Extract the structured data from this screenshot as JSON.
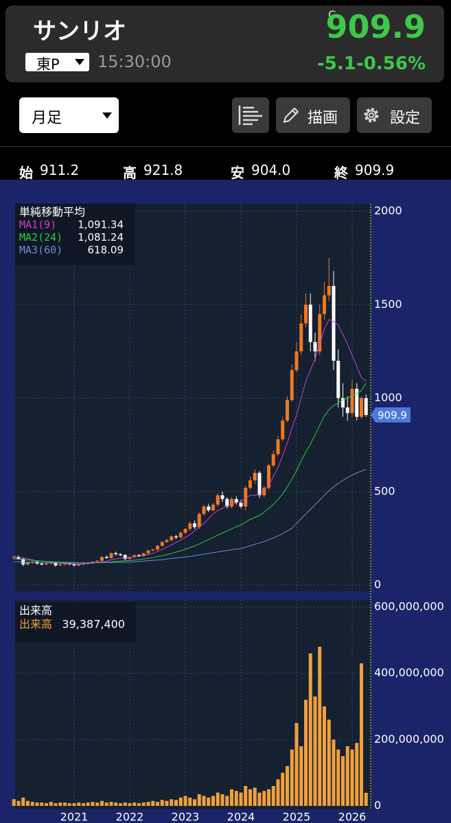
{
  "header": {
    "name": "サンリオ",
    "close_marker": "C",
    "price": "909.9",
    "market": "東P",
    "time": "15:30:00",
    "change": "-5.1",
    "change_pct": "-0.56%"
  },
  "toolbar": {
    "period": "月足",
    "draw": "描画",
    "settings": "設定"
  },
  "ohlc": [
    {
      "label": "始",
      "value": "911.2"
    },
    {
      "label": "高",
      "value": "921.8"
    },
    {
      "label": "安",
      "value": "904.0"
    },
    {
      "label": "終",
      "value": "909.9"
    }
  ],
  "chart_data": [
    {
      "type": "candlestick",
      "categories": [
        null,
        null,
        null,
        null,
        null,
        null,
        null,
        null,
        null,
        null,
        null,
        null,
        null,
        "2021",
        null,
        null,
        null,
        null,
        null,
        null,
        null,
        null,
        null,
        null,
        null,
        "2022",
        null,
        null,
        null,
        null,
        null,
        null,
        null,
        null,
        null,
        null,
        null,
        "2023",
        null,
        null,
        null,
        null,
        null,
        null,
        null,
        null,
        null,
        null,
        null,
        "2024",
        null,
        null,
        null,
        null,
        null,
        null,
        null,
        null,
        null,
        null,
        null,
        "2025",
        null,
        null,
        null,
        null,
        null,
        null,
        null,
        null,
        null,
        null,
        null,
        "2026",
        null,
        null,
        null
      ],
      "open": [
        145,
        150,
        140,
        110,
        120,
        125,
        115,
        110,
        115,
        120,
        105,
        110,
        115,
        110,
        105,
        110,
        115,
        120,
        125,
        130,
        150,
        145,
        170,
        165,
        160,
        140,
        150,
        160,
        155,
        170,
        185,
        190,
        210,
        230,
        240,
        260,
        255,
        280,
        300,
        330,
        310,
        380,
        420,
        400,
        430,
        480,
        460,
        420,
        460,
        440,
        420,
        520,
        560,
        600,
        480,
        520,
        640,
        700,
        780,
        880,
        990,
        1150,
        1250,
        1400,
        1500,
        1300,
        1250,
        1450,
        1550,
        1600,
        1200,
        1000,
        950,
        920,
        1050,
        900,
        1000
      ],
      "high": [
        155,
        158,
        145,
        125,
        128,
        130,
        120,
        120,
        125,
        125,
        112,
        118,
        120,
        115,
        113,
        118,
        123,
        127,
        132,
        155,
        158,
        175,
        178,
        170,
        165,
        152,
        162,
        165,
        172,
        188,
        195,
        215,
        235,
        248,
        265,
        268,
        285,
        305,
        340,
        345,
        390,
        430,
        435,
        440,
        490,
        500,
        470,
        470,
        475,
        455,
        530,
        580,
        620,
        610,
        530,
        650,
        720,
        800,
        900,
        1010,
        1180,
        1300,
        1450,
        1560,
        1560,
        1350,
        1500,
        1620,
        1750,
        1680,
        1260,
        1080,
        1010,
        1100,
        1080,
        1010,
        1020
      ],
      "low": [
        138,
        140,
        100,
        105,
        112,
        108,
        105,
        105,
        110,
        98,
        100,
        105,
        105,
        100,
        100,
        105,
        110,
        115,
        120,
        125,
        140,
        140,
        158,
        155,
        132,
        135,
        142,
        150,
        150,
        165,
        180,
        185,
        205,
        225,
        235,
        245,
        250,
        270,
        290,
        300,
        300,
        370,
        390,
        395,
        420,
        445,
        410,
        410,
        430,
        410,
        400,
        510,
        540,
        465,
        470,
        510,
        630,
        690,
        770,
        870,
        980,
        1140,
        1230,
        1380,
        1250,
        1200,
        1230,
        1420,
        1520,
        1150,
        950,
        900,
        880,
        900,
        880,
        890,
        900
      ],
      "close": [
        150,
        140,
        110,
        120,
        125,
        115,
        110,
        115,
        120,
        105,
        110,
        115,
        110,
        105,
        110,
        115,
        120,
        125,
        130,
        150,
        145,
        170,
        165,
        160,
        140,
        150,
        160,
        155,
        170,
        185,
        190,
        210,
        230,
        240,
        260,
        255,
        280,
        300,
        330,
        310,
        380,
        420,
        400,
        430,
        480,
        460,
        420,
        460,
        440,
        420,
        520,
        560,
        600,
        480,
        520,
        640,
        700,
        780,
        880,
        990,
        1150,
        1250,
        1400,
        1500,
        1300,
        1250,
        1450,
        1550,
        1600,
        1200,
        1000,
        950,
        920,
        1050,
        900,
        1000,
        909.9
      ],
      "up_color": "#f07820",
      "down_color": "#ffffff",
      "last_price": 909.9,
      "legend_title": "単純移動平均",
      "series": [
        {
          "name": "MA1(9)",
          "color": "#d23cd2",
          "latest": {
            "value": 1091.34,
            "label": "1,091.34"
          },
          "values": [
            155,
            150,
            145,
            140,
            135,
            130,
            128,
            125,
            123,
            118,
            116,
            115,
            113,
            112,
            112,
            113,
            115,
            117,
            120,
            124,
            128,
            135,
            140,
            144,
            145,
            148,
            152,
            154,
            158,
            163,
            170,
            180,
            190,
            203,
            215,
            228,
            240,
            255,
            270,
            290,
            310,
            330,
            355,
            380,
            400,
            410,
            425,
            435,
            440,
            450,
            465,
            480,
            480,
            485,
            505,
            535,
            580,
            630,
            690,
            760,
            840,
            910,
            1000,
            1090,
            1150,
            1210,
            1290,
            1370,
            1420,
            1410,
            1390,
            1340,
            1290,
            1230,
            1170,
            1110,
            1091.34
          ]
        },
        {
          "name": "MA2(24)",
          "color": "#2ecc40",
          "latest": {
            "value": 1081.24,
            "label": "1,081.24"
          },
          "values": [
            140,
            138,
            136,
            134,
            132,
            130,
            128,
            126,
            125,
            124,
            123,
            122,
            121,
            120,
            119,
            119,
            119,
            120,
            120,
            121,
            122,
            124,
            126,
            128,
            129,
            131,
            133,
            136,
            139,
            143,
            147,
            152,
            157,
            163,
            169,
            176,
            183,
            191,
            200,
            209,
            220,
            231,
            243,
            255,
            267,
            278,
            290,
            301,
            312,
            322,
            336,
            351,
            361,
            372,
            390,
            410,
            431,
            457,
            488,
            524,
            568,
            612,
            665,
            712,
            755,
            805,
            855,
            905,
            937,
            960,
            975,
            990,
            1000,
            1015,
            1025,
            1040,
            1081.24
          ]
        },
        {
          "name": "MA3(60)",
          "color": "#6a8fd8",
          "latest": {
            "value": 618.09,
            "label": "618.09"
          },
          "values": [
            125,
            124,
            123,
            122,
            121,
            120,
            120,
            119,
            119,
            118,
            118,
            118,
            118,
            118,
            118,
            118,
            118,
            119,
            119,
            120,
            120,
            121,
            121,
            122,
            122,
            122,
            124,
            126,
            128,
            130,
            132,
            134,
            136,
            139,
            142,
            145,
            148,
            150,
            153,
            157,
            161,
            165,
            169,
            173,
            177,
            181,
            185,
            189,
            192,
            195,
            202,
            210,
            218,
            225,
            233,
            242,
            252,
            263,
            275,
            289,
            304,
            330,
            355,
            380,
            405,
            430,
            455,
            480,
            505,
            525,
            545,
            560,
            575,
            588,
            600,
            610,
            618.09
          ]
        }
      ],
      "ylim": [
        0,
        2000
      ],
      "yticks": [
        0,
        500,
        1000,
        1500,
        2000
      ],
      "grid": true
    },
    {
      "type": "bar",
      "title": "出来高",
      "categories": [
        null,
        null,
        null,
        null,
        null,
        null,
        null,
        null,
        null,
        null,
        null,
        null,
        null,
        "2021",
        null,
        null,
        null,
        null,
        null,
        null,
        null,
        null,
        null,
        null,
        null,
        "2022",
        null,
        null,
        null,
        null,
        null,
        null,
        null,
        null,
        null,
        null,
        null,
        "2023",
        null,
        null,
        null,
        null,
        null,
        null,
        null,
        null,
        null,
        null,
        null,
        "2024",
        null,
        null,
        null,
        null,
        null,
        null,
        null,
        null,
        null,
        null,
        null,
        "2025",
        null,
        null,
        null,
        null,
        null,
        null,
        null,
        null,
        null,
        null,
        null,
        "2026",
        null,
        null,
        null
      ],
      "series": [
        {
          "name": "出来高",
          "color": "#f0a03c",
          "latest": {
            "value": 39387400,
            "label": "39,387,400"
          },
          "values": [
            20000000,
            15000000,
            25000000,
            15000000,
            12000000,
            10000000,
            10000000,
            8000000,
            12000000,
            8000000,
            10000000,
            10000000,
            8000000,
            8000000,
            10000000,
            8000000,
            10000000,
            12000000,
            10000000,
            15000000,
            10000000,
            12000000,
            10000000,
            8000000,
            10000000,
            8000000,
            10000000,
            8000000,
            10000000,
            12000000,
            15000000,
            12000000,
            18000000,
            15000000,
            20000000,
            18000000,
            25000000,
            30000000,
            25000000,
            20000000,
            35000000,
            30000000,
            25000000,
            30000000,
            40000000,
            35000000,
            30000000,
            50000000,
            45000000,
            40000000,
            60000000,
            50000000,
            55000000,
            40000000,
            45000000,
            50000000,
            60000000,
            80000000,
            100000000,
            120000000,
            170000000,
            250000000,
            180000000,
            320000000,
            460000000,
            330000000,
            480000000,
            300000000,
            260000000,
            200000000,
            170000000,
            150000000,
            180000000,
            170000000,
            190000000,
            430000000,
            39387400
          ]
        }
      ],
      "ylim": [
        0,
        600000000
      ],
      "yticks": [
        0,
        {
          "value": 200000000,
          "label": "200,000,000"
        },
        {
          "value": 400000000,
          "label": "400,000,000"
        },
        {
          "value": 600000000,
          "label": "600,000,000"
        }
      ],
      "grid": true
    }
  ]
}
